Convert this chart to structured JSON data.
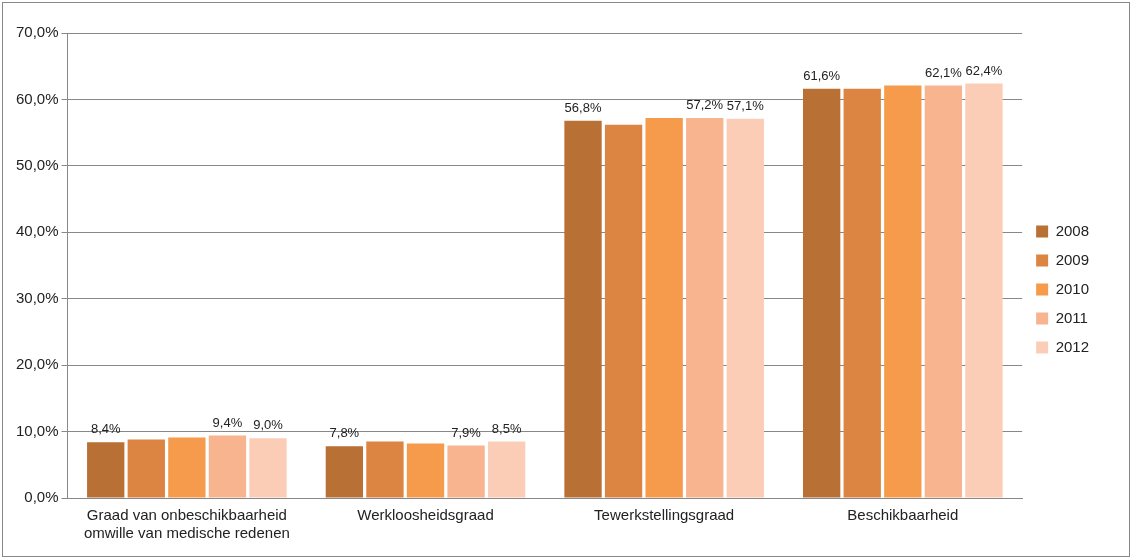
{
  "chart_data": {
    "type": "bar",
    "categories": [
      "Graad van onbeschikbaarheid omwille van medische redenen",
      "Werkloosheidsgraad",
      "Tewerkstellingsgraad",
      "Beschikbaarheid"
    ],
    "series": [
      {
        "name": "2008",
        "color": "#b87035",
        "values": [
          8.4,
          7.8,
          56.8,
          61.6
        ],
        "value_labels": [
          "8,4%",
          "7,8%",
          "56,8%",
          "61,6%"
        ]
      },
      {
        "name": "2009",
        "color": "#dc8442",
        "values": [
          8.8,
          8.5,
          56.2,
          61.6
        ],
        "value_labels": [
          null,
          null,
          null,
          null
        ]
      },
      {
        "name": "2010",
        "color": "#f69a4b",
        "values": [
          9.1,
          8.2,
          57.2,
          62.1
        ],
        "value_labels": [
          null,
          null,
          null,
          null
        ]
      },
      {
        "name": "2011",
        "color": "#f8b38f",
        "values": [
          9.4,
          7.9,
          57.2,
          62.1
        ],
        "value_labels": [
          "9,4%",
          "7,9%",
          "57,2%",
          "62,1%"
        ]
      },
      {
        "name": "2012",
        "color": "#fbcdb6",
        "values": [
          9.0,
          8.5,
          57.1,
          62.4
        ],
        "value_labels": [
          "9,0%",
          "8,5%",
          "57,1%",
          "62,4%"
        ]
      }
    ],
    "ylim": [
      0,
      70
    ],
    "yticks": [
      {
        "value": 0,
        "label": "0,0%"
      },
      {
        "value": 10,
        "label": "10,0%"
      },
      {
        "value": 20,
        "label": "20,0%"
      },
      {
        "value": 30,
        "label": "30,0%"
      },
      {
        "value": 40,
        "label": "40,0%"
      },
      {
        "value": 50,
        "label": "50,0%"
      },
      {
        "value": 60,
        "label": "60,0%"
      },
      {
        "value": 70,
        "label": "70,0%"
      }
    ],
    "grid": "y",
    "legend": "right"
  }
}
